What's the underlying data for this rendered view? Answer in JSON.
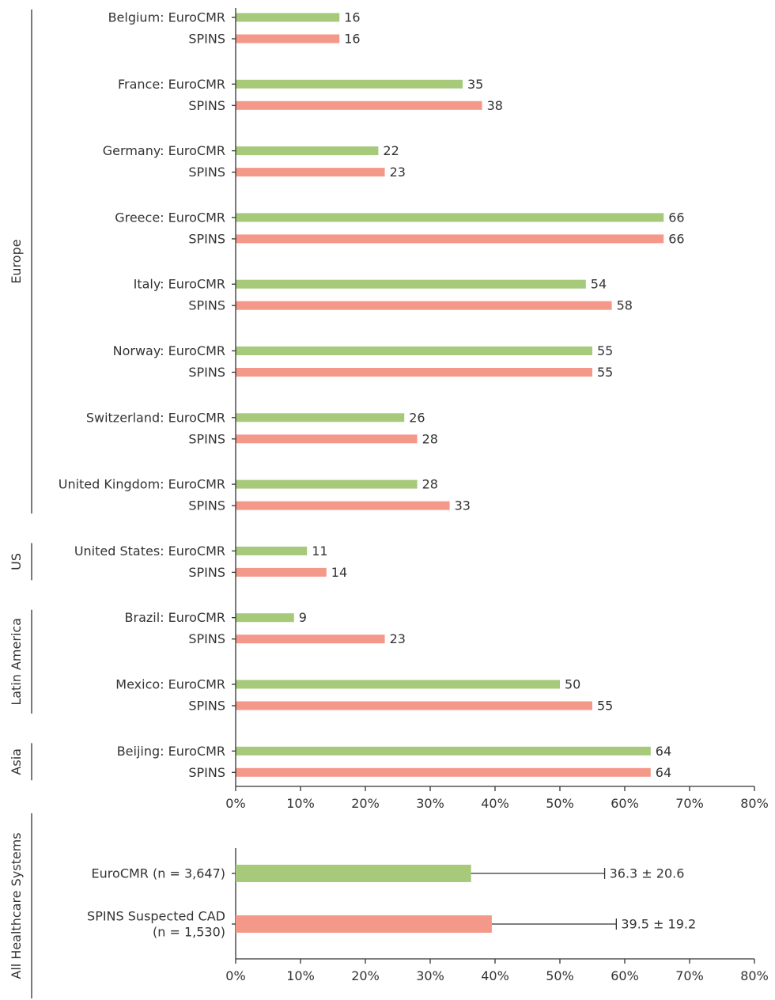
{
  "colors": {
    "eurocmr": "#a6c97a",
    "spins": "#f4998a",
    "text": "#333333"
  },
  "chart_data": [
    {
      "type": "bar",
      "orientation": "horizontal",
      "groups": [
        {
          "name": "Europe",
          "countries": [
            {
              "label": "Belgium: EuroCMR",
              "spins_label": "SPINS",
              "eurocmr": 16,
              "spins": 16,
              "eurocmr_text": "16",
              "spins_text": "16"
            },
            {
              "label": "France: EuroCMR",
              "spins_label": "SPINS",
              "eurocmr": 35,
              "spins": 38,
              "eurocmr_text": "35",
              "spins_text": "38"
            },
            {
              "label": "Germany: EuroCMR",
              "spins_label": "SPINS",
              "eurocmr": 22,
              "spins": 23,
              "eurocmr_text": "22",
              "spins_text": "23"
            },
            {
              "label": "Greece: EuroCMR",
              "spins_label": "SPINS",
              "eurocmr": 66,
              "spins": 66,
              "eurocmr_text": "66",
              "spins_text": "66"
            },
            {
              "label": "Italy: EuroCMR",
              "spins_label": "SPINS",
              "eurocmr": 54,
              "spins": 58,
              "eurocmr_text": "54",
              "spins_text": "58"
            },
            {
              "label": "Norway: EuroCMR",
              "spins_label": "SPINS",
              "eurocmr": 55,
              "spins": 55,
              "eurocmr_text": "55",
              "spins_text": "55"
            },
            {
              "label": "Switzerland: EuroCMR",
              "spins_label": "SPINS",
              "eurocmr": 26,
              "spins": 28,
              "eurocmr_text": "26",
              "spins_text": "28"
            },
            {
              "label": "United Kingdom: EuroCMR",
              "spins_label": "SPINS",
              "eurocmr": 28,
              "spins": 33,
              "eurocmr_text": "28",
              "spins_text": "33"
            }
          ]
        },
        {
          "name": "US",
          "countries": [
            {
              "label": "United States: EuroCMR",
              "spins_label": "SPINS",
              "eurocmr": 11,
              "spins": 14,
              "eurocmr_text": "11",
              "spins_text": "14"
            }
          ]
        },
        {
          "name": "Latin America",
          "countries": [
            {
              "label": "Brazil: EuroCMR",
              "spins_label": "SPINS",
              "eurocmr": 9,
              "spins": 23,
              "eurocmr_text": "9",
              "spins_text": "23"
            },
            {
              "label": "Mexico: EuroCMR",
              "spins_label": "SPINS",
              "eurocmr": 50,
              "spins": 55,
              "eurocmr_text": "50",
              "spins_text": "55"
            }
          ]
        },
        {
          "name": "Asia",
          "countries": [
            {
              "label": "Beijing: EuroCMR",
              "spins_label": "SPINS",
              "eurocmr": 64,
              "spins": 64,
              "eurocmr_text": "64",
              "spins_text": "64"
            }
          ]
        }
      ],
      "x_ticks": [
        "0%",
        "10%",
        "20%",
        "30%",
        "40%",
        "50%",
        "60%",
        "70%",
        "80%"
      ]
    },
    {
      "type": "bar",
      "orientation": "horizontal",
      "group_label": "All Healthcare Systems",
      "bars": [
        {
          "label_lines": [
            "EuroCMR (n = 3,647)"
          ],
          "value": 36.3,
          "error": 20.6,
          "value_text": "36.3 ± 20.6",
          "series": "eurocmr"
        },
        {
          "label_lines": [
            "SPINS Suspected CAD",
            "(n = 1,530)"
          ],
          "value": 39.5,
          "error": 19.2,
          "value_text": "39.5 ± 19.2",
          "series": "spins"
        }
      ],
      "x_ticks": [
        "0%",
        "10%",
        "20%",
        "30%",
        "40%",
        "50%",
        "60%",
        "70%",
        "80%"
      ]
    }
  ]
}
